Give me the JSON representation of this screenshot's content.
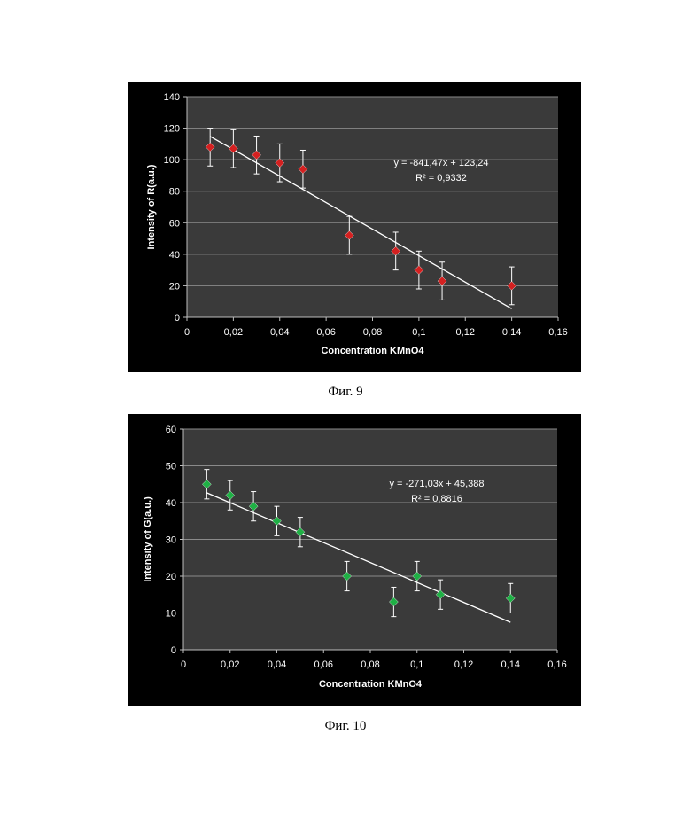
{
  "figures": [
    {
      "caption": "Фиг. 9"
    },
    {
      "caption": "Фиг. 10"
    }
  ],
  "chart_data": [
    {
      "type": "scatter",
      "title": "",
      "xlabel": "Concentration KMnO4",
      "ylabel": "Intensity of R(a.u.)",
      "xlim": [
        0,
        0.16
      ],
      "ylim": [
        0,
        140
      ],
      "xticks": [
        "0",
        "0,02",
        "0,04",
        "0,06",
        "0,08",
        "0,1",
        "0,12",
        "0,14",
        "0,16"
      ],
      "yticks": [
        "0",
        "20",
        "40",
        "60",
        "80",
        "100",
        "120",
        "140"
      ],
      "grid": "horizontal",
      "marker_color": "#d42020",
      "background": "#3a3a3a",
      "points": [
        {
          "x": 0.01,
          "y": 108,
          "err": 12
        },
        {
          "x": 0.02,
          "y": 107,
          "err": 12
        },
        {
          "x": 0.03,
          "y": 103,
          "err": 12
        },
        {
          "x": 0.04,
          "y": 98,
          "err": 12
        },
        {
          "x": 0.05,
          "y": 94,
          "err": 12
        },
        {
          "x": 0.07,
          "y": 52,
          "err": 12
        },
        {
          "x": 0.09,
          "y": 42,
          "err": 12
        },
        {
          "x": 0.1,
          "y": 30,
          "err": 12
        },
        {
          "x": 0.11,
          "y": 23,
          "err": 12
        },
        {
          "x": 0.14,
          "y": 20,
          "err": 12
        }
      ],
      "trendline": {
        "slope": -841.47,
        "intercept": 123.24,
        "x_range": [
          0.01,
          0.14
        ]
      },
      "equation": "y = -841,47x + 123,24",
      "r2": "R² = 0,9332"
    },
    {
      "type": "scatter",
      "title": "",
      "xlabel": "Concentration KMnO4",
      "ylabel": "Intensity of G(a.u.)",
      "xlim": [
        0,
        0.16
      ],
      "ylim": [
        0,
        60
      ],
      "xticks": [
        "0",
        "0,02",
        "0,04",
        "0,06",
        "0,08",
        "0,1",
        "0,12",
        "0,14",
        "0,16"
      ],
      "yticks": [
        "0",
        "10",
        "20",
        "30",
        "40",
        "50",
        "60"
      ],
      "grid": "horizontal",
      "marker_color": "#1fb045",
      "background": "#3a3a3a",
      "points": [
        {
          "x": 0.01,
          "y": 45,
          "err": 4
        },
        {
          "x": 0.02,
          "y": 42,
          "err": 4
        },
        {
          "x": 0.03,
          "y": 39,
          "err": 4
        },
        {
          "x": 0.04,
          "y": 35,
          "err": 4
        },
        {
          "x": 0.05,
          "y": 32,
          "err": 4
        },
        {
          "x": 0.07,
          "y": 20,
          "err": 4
        },
        {
          "x": 0.09,
          "y": 13,
          "err": 4
        },
        {
          "x": 0.1,
          "y": 20,
          "err": 4
        },
        {
          "x": 0.11,
          "y": 15,
          "err": 4
        },
        {
          "x": 0.14,
          "y": 14,
          "err": 4
        }
      ],
      "trendline": {
        "slope": -271.03,
        "intercept": 45.388,
        "x_range": [
          0.01,
          0.14
        ]
      },
      "equation": "y = -271,03x + 45,388",
      "r2": "R² = 0,8816"
    }
  ]
}
